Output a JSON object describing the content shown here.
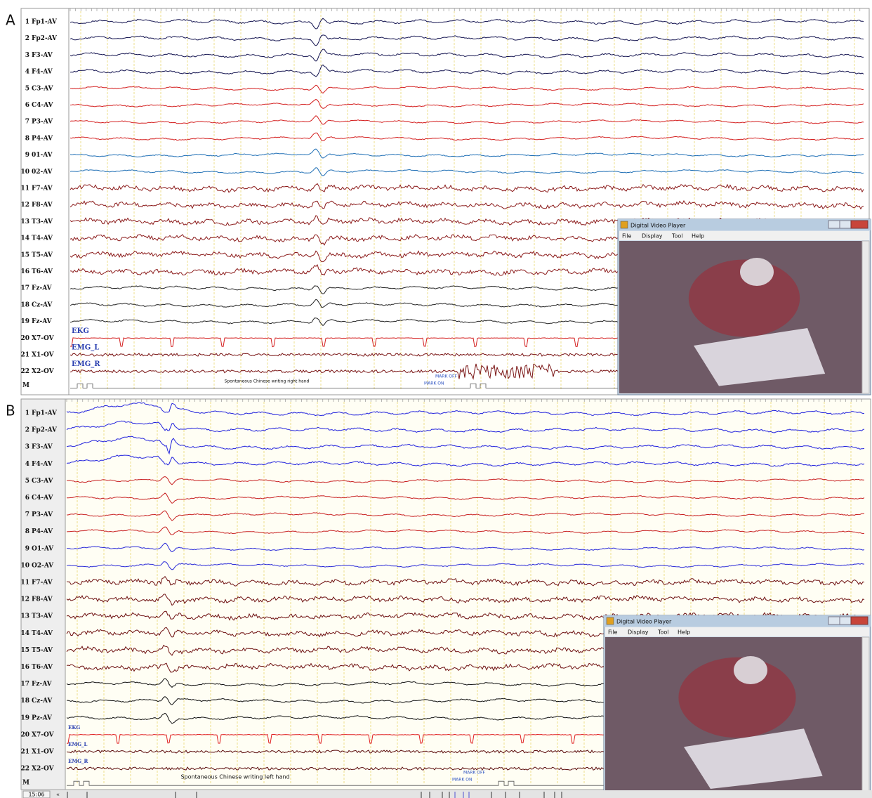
{
  "panels": [
    {
      "label": "A",
      "channels": [
        {
          "number": "1",
          "name": "Fp1-AV"
        },
        {
          "number": "2",
          "name": "Fp2-AV"
        },
        {
          "number": "3",
          "name": "F3-AV"
        },
        {
          "number": "4",
          "name": "F4-AV"
        },
        {
          "number": "5",
          "name": "C3-AV"
        },
        {
          "number": "6",
          "name": "C4-AV"
        },
        {
          "number": "7",
          "name": "P3-AV"
        },
        {
          "number": "8",
          "name": "P4-AV"
        },
        {
          "number": "9",
          "name": "01-AV"
        },
        {
          "number": "10",
          "name": "02-AV"
        },
        {
          "number": "11",
          "name": "F7-AV"
        },
        {
          "number": "12",
          "name": "F8-AV"
        },
        {
          "number": "13",
          "name": "T3-AV"
        },
        {
          "number": "14",
          "name": "T4-AV"
        },
        {
          "number": "15",
          "name": "T5-AV"
        },
        {
          "number": "16",
          "name": "T6-AV"
        },
        {
          "number": "17",
          "name": "Fz-AV"
        },
        {
          "number": "18",
          "name": "Cz-AV"
        },
        {
          "number": "19",
          "name": "Fz-AV"
        },
        {
          "number": "20",
          "name": "X7-OV"
        },
        {
          "number": "21",
          "name": "X1-OV"
        },
        {
          "number": "22",
          "name": "X2-OV"
        }
      ],
      "marker_row": "M",
      "channel_notes": [
        "EKG",
        "EMG_L",
        "EMG_R"
      ],
      "event_note": "Spontaneous Chinese writing right hand",
      "mark_off": "MARK OFF",
      "mark_on": "MARK ON",
      "video": {
        "title": "Digital Video Player",
        "menu": [
          "File",
          "Display",
          "Tool",
          "Help"
        ]
      }
    },
    {
      "label": "B",
      "channels": [
        {
          "number": "1",
          "name": "Fp1-AV"
        },
        {
          "number": "2",
          "name": "Fp2-AV"
        },
        {
          "number": "3",
          "name": "F3-AV"
        },
        {
          "number": "4",
          "name": "F4-AV"
        },
        {
          "number": "5",
          "name": "C3-AV"
        },
        {
          "number": "6",
          "name": "C4-AV"
        },
        {
          "number": "7",
          "name": "P3-AV"
        },
        {
          "number": "8",
          "name": "P4-AV"
        },
        {
          "number": "9",
          "name": "O1-AV"
        },
        {
          "number": "10",
          "name": "O2-AV"
        },
        {
          "number": "11",
          "name": "F7-AV"
        },
        {
          "number": "12",
          "name": "F8-AV"
        },
        {
          "number": "13",
          "name": "T3-AV"
        },
        {
          "number": "14",
          "name": "T4-AV"
        },
        {
          "number": "15",
          "name": "T5-AV"
        },
        {
          "number": "16",
          "name": "T6-AV"
        },
        {
          "number": "17",
          "name": "Fz-AV"
        },
        {
          "number": "18",
          "name": "Cz-AV"
        },
        {
          "number": "19",
          "name": "Pz-AV"
        },
        {
          "number": "20",
          "name": "X7-OV"
        },
        {
          "number": "21",
          "name": "X1-OV"
        },
        {
          "number": "22",
          "name": "X2-OV"
        }
      ],
      "marker_row": "M",
      "channel_notes": [
        "EKG",
        "EMG_L",
        "EMG_R"
      ],
      "event_note": "Spontaneous Chinese writing left hand",
      "mark_off": "MARK OFF",
      "mark_on": "MARK ON",
      "video": {
        "title": "Digital Video Player",
        "menu": [
          "File",
          "Display",
          "Tool",
          "Help"
        ]
      }
    }
  ],
  "footer_time": "15:06"
}
